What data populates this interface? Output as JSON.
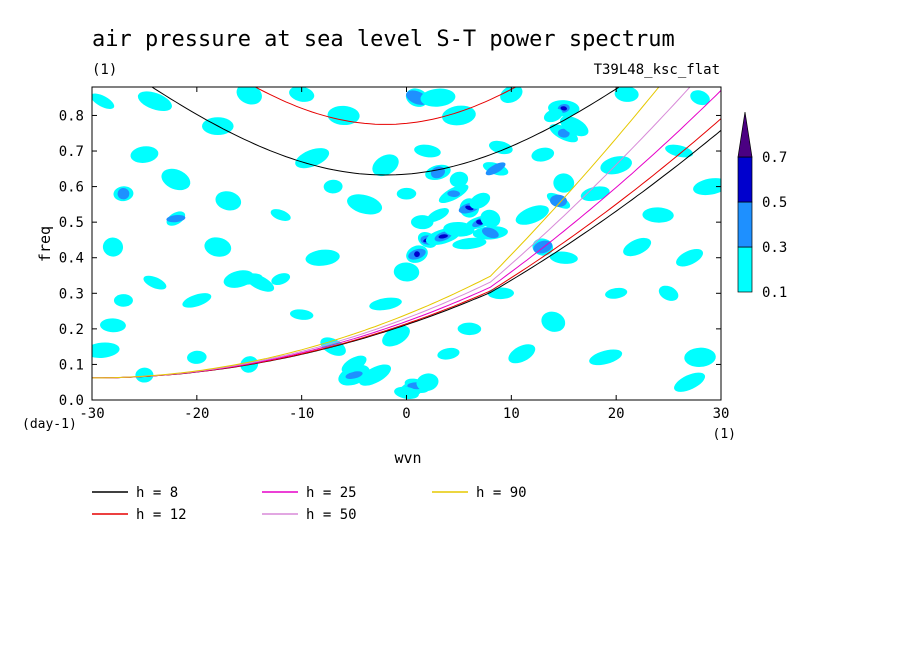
{
  "title": "air pressure at sea level S-T power spectrum",
  "subtitle_left": "(1)",
  "subtitle_right": "T39L48_ksc_flat",
  "chart_data": {
    "type": "heatmap",
    "xlabel": "wvn",
    "ylabel": "freq",
    "x_unit": "(1)",
    "y_unit": "(day-1)",
    "xlim": [
      -30,
      30
    ],
    "ylim": [
      0,
      0.88
    ],
    "x_ticks": [
      -30,
      -20,
      -10,
      0,
      10,
      20,
      30
    ],
    "x_tick_labels": [
      "-30",
      "-20",
      "-10",
      "0",
      "10",
      "20",
      "30"
    ],
    "y_ticks": [
      0,
      0.1,
      0.2,
      0.3,
      0.4,
      0.5,
      0.6,
      0.7,
      0.8
    ],
    "y_tick_labels": [
      "0.0",
      "0.1",
      "0.2",
      "0.3",
      "0.4",
      "0.5",
      "0.6",
      "0.7",
      "0.8"
    ],
    "colorbar": {
      "levels": [
        0.1,
        0.3,
        0.5,
        0.7
      ],
      "level_labels": [
        "0.1",
        "0.3",
        "0.5",
        "0.7"
      ],
      "colors": [
        "#00ffff",
        "#1e90ff",
        "#0000cd",
        "#4b0082"
      ]
    },
    "legend": [
      {
        "label": "h =  8",
        "h": 8,
        "color": "#000000"
      },
      {
        "label": "h = 12",
        "h": 12,
        "color": "#e60000"
      },
      {
        "label": "h = 25",
        "h": 25,
        "color": "#e600c8"
      },
      {
        "label": "h = 50",
        "h": 50,
        "color": "#d88ad8"
      },
      {
        "label": "h = 90",
        "h": 90,
        "color": "#e6c800"
      }
    ],
    "blobs": [
      {
        "k": 0.5,
        "f": 0.03,
        "level": 3
      },
      {
        "k": 1,
        "f": 0.04,
        "level": 2
      },
      {
        "k": 1,
        "f": 0.41,
        "level": 3
      },
      {
        "k": 2,
        "f": 0.45,
        "level": 3
      },
      {
        "k": 3.5,
        "f": 0.46,
        "level": 3
      },
      {
        "k": 6,
        "f": 0.54,
        "level": 3
      },
      {
        "k": 7,
        "f": 0.5,
        "level": 3
      },
      {
        "k": 8,
        "f": 0.47,
        "level": 2
      },
      {
        "k": 3,
        "f": 0.64,
        "level": 2
      },
      {
        "k": 1,
        "f": 0.85,
        "level": 2
      },
      {
        "k": 15,
        "f": 0.82,
        "level": 3
      },
      {
        "k": 15,
        "f": 0.75,
        "level": 2
      },
      {
        "k": 14.5,
        "f": 0.56,
        "level": 2
      },
      {
        "k": 8.5,
        "f": 0.65,
        "level": 2
      },
      {
        "k": 13,
        "f": 0.43,
        "level": 2
      },
      {
        "k": 4.5,
        "f": 0.58,
        "level": 2
      },
      {
        "k": -5,
        "f": 0.07,
        "level": 2
      },
      {
        "k": -15,
        "f": 0.34,
        "level": 2
      },
      {
        "k": -22,
        "f": 0.51,
        "level": 2
      },
      {
        "k": -27,
        "f": 0.58,
        "level": 2
      },
      {
        "k": -14,
        "f": 0.33,
        "level": 1
      },
      {
        "k": -16,
        "f": 0.34,
        "level": 1
      },
      {
        "k": -24,
        "f": 0.33,
        "level": 1
      },
      {
        "k": -12,
        "f": 0.34,
        "level": 1
      },
      {
        "k": -10,
        "f": 0.24,
        "level": 1
      },
      {
        "k": -28,
        "f": 0.21,
        "level": 1
      },
      {
        "k": -29,
        "f": 0.14,
        "level": 1
      },
      {
        "k": -28,
        "f": 0.43,
        "level": 1
      },
      {
        "k": -18,
        "f": 0.43,
        "level": 1
      },
      {
        "k": -15,
        "f": 0.86,
        "level": 1
      },
      {
        "k": -10,
        "f": 0.86,
        "level": 1
      },
      {
        "k": -6,
        "f": 0.8,
        "level": 1
      },
      {
        "k": -24,
        "f": 0.84,
        "level": 1
      },
      {
        "k": -29,
        "f": 0.84,
        "level": 1
      },
      {
        "k": -25,
        "f": 0.69,
        "level": 1
      },
      {
        "k": -18,
        "f": 0.77,
        "level": 1
      },
      {
        "k": -17,
        "f": 0.56,
        "level": 1
      },
      {
        "k": -7,
        "f": 0.6,
        "level": 1
      },
      {
        "k": -9,
        "f": 0.68,
        "level": 1
      },
      {
        "k": -20,
        "f": 0.28,
        "level": 1
      },
      {
        "k": -5,
        "f": 0.1,
        "level": 1
      },
      {
        "k": -3,
        "f": 0.07,
        "level": 1
      },
      {
        "k": 0,
        "f": 0.02,
        "level": 1
      },
      {
        "k": 2,
        "f": 0.05,
        "level": 1
      },
      {
        "k": -8,
        "f": 0.4,
        "level": 1
      },
      {
        "k": -2,
        "f": 0.27,
        "level": 1
      },
      {
        "k": 0,
        "f": 0.36,
        "level": 1
      },
      {
        "k": 0,
        "f": 0.58,
        "level": 1
      },
      {
        "k": 1.5,
        "f": 0.5,
        "level": 1
      },
      {
        "k": 3,
        "f": 0.52,
        "level": 1
      },
      {
        "k": 5,
        "f": 0.48,
        "level": 1
      },
      {
        "k": 6,
        "f": 0.44,
        "level": 1
      },
      {
        "k": 7,
        "f": 0.56,
        "level": 1
      },
      {
        "k": 8,
        "f": 0.51,
        "level": 1
      },
      {
        "k": 5,
        "f": 0.62,
        "level": 1
      },
      {
        "k": 9,
        "f": 0.71,
        "level": 1
      },
      {
        "k": 2,
        "f": 0.7,
        "level": 1
      },
      {
        "k": 5,
        "f": 0.8,
        "level": 1
      },
      {
        "k": 3,
        "f": 0.85,
        "level": 1
      },
      {
        "k": 14,
        "f": 0.8,
        "level": 1
      },
      {
        "k": 16,
        "f": 0.77,
        "level": 1
      },
      {
        "k": 13,
        "f": 0.69,
        "level": 1
      },
      {
        "k": 15,
        "f": 0.61,
        "level": 1
      },
      {
        "k": 20,
        "f": 0.66,
        "level": 1
      },
      {
        "k": 26,
        "f": 0.7,
        "level": 1
      },
      {
        "k": 29,
        "f": 0.6,
        "level": 1
      },
      {
        "k": 21,
        "f": 0.86,
        "level": 1
      },
      {
        "k": 28,
        "f": 0.85,
        "level": 1
      },
      {
        "k": 24,
        "f": 0.52,
        "level": 1
      },
      {
        "k": 27,
        "f": 0.4,
        "level": 1
      },
      {
        "k": 25,
        "f": 0.3,
        "level": 1
      },
      {
        "k": 28,
        "f": 0.12,
        "level": 1
      },
      {
        "k": 27,
        "f": 0.05,
        "level": 1
      },
      {
        "k": 19,
        "f": 0.12,
        "level": 1
      },
      {
        "k": 20,
        "f": 0.3,
        "level": 1
      },
      {
        "k": 14,
        "f": 0.22,
        "level": 1
      },
      {
        "k": 11,
        "f": 0.13,
        "level": 1
      },
      {
        "k": 9,
        "f": 0.3,
        "level": 1
      },
      {
        "k": 6,
        "f": 0.2,
        "level": 1
      },
      {
        "k": 15,
        "f": 0.4,
        "level": 1
      },
      {
        "k": 22,
        "f": 0.43,
        "level": 1
      },
      {
        "k": -25,
        "f": 0.07,
        "level": 1
      },
      {
        "k": -15,
        "f": 0.1,
        "level": 1
      },
      {
        "k": -20,
        "f": 0.12,
        "level": 1
      },
      {
        "k": -22,
        "f": 0.62,
        "level": 1
      },
      {
        "k": -12,
        "f": 0.52,
        "level": 1
      },
      {
        "k": -4,
        "f": 0.55,
        "level": 1
      },
      {
        "k": -2,
        "f": 0.66,
        "level": 1
      },
      {
        "k": 10,
        "f": 0.86,
        "level": 1
      },
      {
        "k": 18,
        "f": 0.58,
        "level": 1
      },
      {
        "k": 12,
        "f": 0.52,
        "level": 1
      },
      {
        "k": -1,
        "f": 0.18,
        "level": 1
      },
      {
        "k": 4,
        "f": 0.13,
        "level": 1
      },
      {
        "k": -27,
        "f": 0.28,
        "level": 1
      },
      {
        "k": -7,
        "f": 0.15,
        "level": 1
      }
    ]
  }
}
